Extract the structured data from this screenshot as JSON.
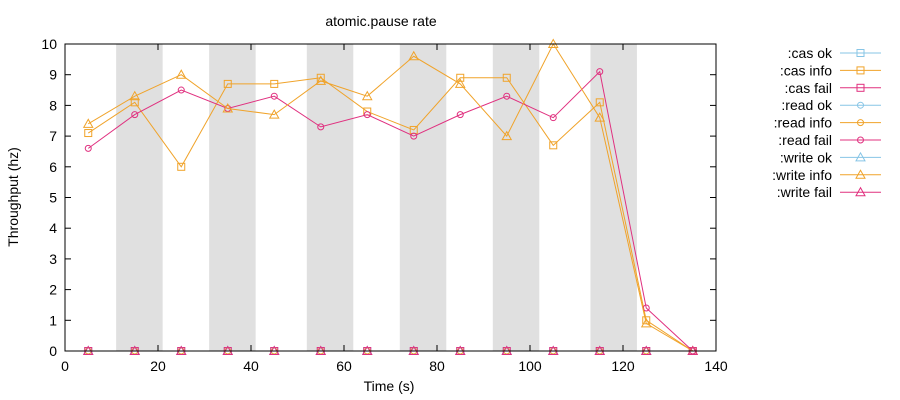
{
  "chart_data": {
    "type": "line",
    "title": "atomic.pause rate",
    "xlabel": "Time (s)",
    "ylabel": "Throughput (hz)",
    "xlim": [
      0,
      140
    ],
    "ylim": [
      0,
      10
    ],
    "x_ticks": [
      0,
      20,
      40,
      60,
      80,
      100,
      120,
      140
    ],
    "y_ticks": [
      0,
      1,
      2,
      3,
      4,
      5,
      6,
      7,
      8,
      9,
      10
    ],
    "grid": false,
    "legend_position": "outside-right",
    "shaded_intervals": [
      [
        11,
        21
      ],
      [
        31,
        41
      ],
      [
        52,
        62
      ],
      [
        72,
        82
      ],
      [
        92,
        102
      ],
      [
        113,
        123
      ]
    ],
    "shade_color": "#e0e0e0",
    "x": [
      5,
      15,
      25,
      35,
      45,
      55,
      65,
      75,
      85,
      95,
      105,
      115,
      125,
      135
    ],
    "series": [
      {
        "name": ":cas ok",
        "color": "#87c5e6",
        "marker": "square",
        "values": [
          0,
          0,
          0,
          0,
          0,
          0,
          0,
          0,
          0,
          0,
          0,
          0,
          0,
          0
        ]
      },
      {
        "name": ":cas info",
        "color": "#f0a32a",
        "marker": "square",
        "values": [
          7.1,
          8.1,
          6.0,
          8.7,
          8.7,
          8.9,
          7.8,
          7.2,
          8.9,
          8.9,
          6.7,
          8.1,
          1.0,
          0
        ]
      },
      {
        "name": ":cas fail",
        "color": "#e0307f",
        "marker": "square",
        "values": [
          0,
          0,
          0,
          0,
          0,
          0,
          0,
          0,
          0,
          0,
          0,
          0,
          0,
          0
        ]
      },
      {
        "name": ":read ok",
        "color": "#87c5e6",
        "marker": "circle",
        "values": [
          0,
          0,
          0,
          0,
          0,
          0,
          0,
          0,
          0,
          0,
          0,
          0,
          0,
          0
        ]
      },
      {
        "name": ":read info",
        "color": "#f0a32a",
        "marker": "circle",
        "values": [
          0,
          0,
          0,
          0,
          0,
          0,
          0,
          0,
          0,
          0,
          0,
          0,
          0,
          0
        ]
      },
      {
        "name": ":read fail",
        "color": "#e0307f",
        "marker": "circle",
        "values": [
          6.6,
          7.7,
          8.5,
          7.9,
          8.3,
          7.3,
          7.7,
          7.0,
          7.7,
          8.3,
          7.6,
          9.1,
          1.4,
          0
        ]
      },
      {
        "name": ":write ok",
        "color": "#87c5e6",
        "marker": "triangle",
        "values": [
          0,
          0,
          0,
          0,
          0,
          0,
          0,
          0,
          0,
          0,
          0,
          0,
          0,
          0
        ]
      },
      {
        "name": ":write info",
        "color": "#f0a32a",
        "marker": "triangle",
        "values": [
          7.4,
          8.3,
          9.0,
          7.9,
          7.7,
          8.8,
          8.3,
          9.6,
          8.7,
          7.0,
          10.0,
          7.6,
          0.9,
          0
        ]
      },
      {
        "name": ":write fail",
        "color": "#e0307f",
        "marker": "triangle",
        "values": [
          0,
          0,
          0,
          0,
          0,
          0,
          0,
          0,
          0,
          0,
          0,
          0,
          0,
          0
        ]
      }
    ]
  }
}
